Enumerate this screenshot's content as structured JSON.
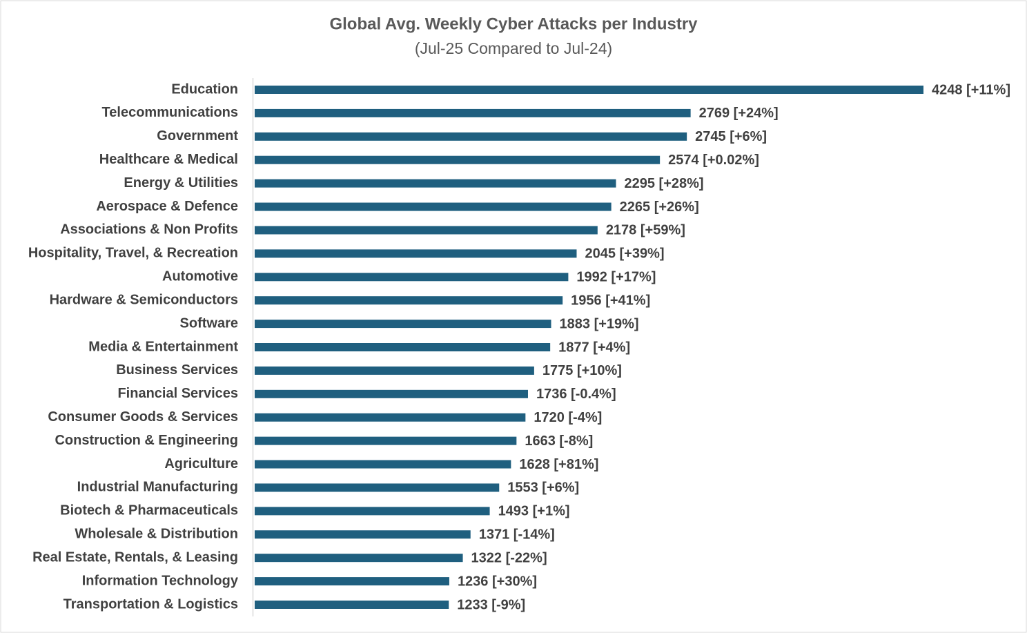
{
  "chart_data": {
    "type": "bar",
    "orientation": "horizontal",
    "title": "Global Avg. Weekly Cyber Attacks per Industry",
    "subtitle": "(Jul-25 Compared to Jul-24)",
    "color": "#1f5f7f",
    "categories": [
      "Education",
      "Telecommunications",
      "Government",
      "Healthcare & Medical",
      "Energy & Utilities",
      "Aerospace & Defence",
      "Associations & Non Profits",
      "Hospitality, Travel, & Recreation",
      "Automotive",
      "Hardware & Semiconductors",
      "Software",
      "Media & Entertainment",
      "Business Services",
      "Financial Services",
      "Consumer Goods & Services",
      "Construction & Engineering",
      "Agriculture",
      "Industrial Manufacturing",
      "Biotech & Pharmaceuticals",
      "Wholesale & Distribution",
      "Real Estate, Rentals, & Leasing",
      "Information Technology",
      "Transportation & Logistics"
    ],
    "values": [
      4248,
      2769,
      2745,
      2574,
      2295,
      2265,
      2178,
      2045,
      1992,
      1956,
      1883,
      1877,
      1775,
      1736,
      1720,
      1663,
      1628,
      1553,
      1493,
      1371,
      1322,
      1236,
      1233
    ],
    "value_labels": [
      "4248 [+11%]",
      "2769 [+24%]",
      "2745 [+6%]",
      "2574 [+0.02%]",
      "2295 [+28%]",
      "2265 [+26%]",
      "2178 [+59%]",
      "2045 [+39%]",
      "1992 [+17%]",
      "1956 [+41%]",
      "1883 [+19%]",
      "1877 [+4%]",
      "1775 [+10%]",
      "1736 [-0.4%]",
      "1720 [-4%]",
      "1663 [-8%]",
      "1628 [+81%]",
      "1553 [+6%]",
      "1493 [+1%]",
      "1371 [-14%]",
      "1322 [-22%]",
      "1236 [+30%]",
      "1233 [-9%]"
    ]
  }
}
